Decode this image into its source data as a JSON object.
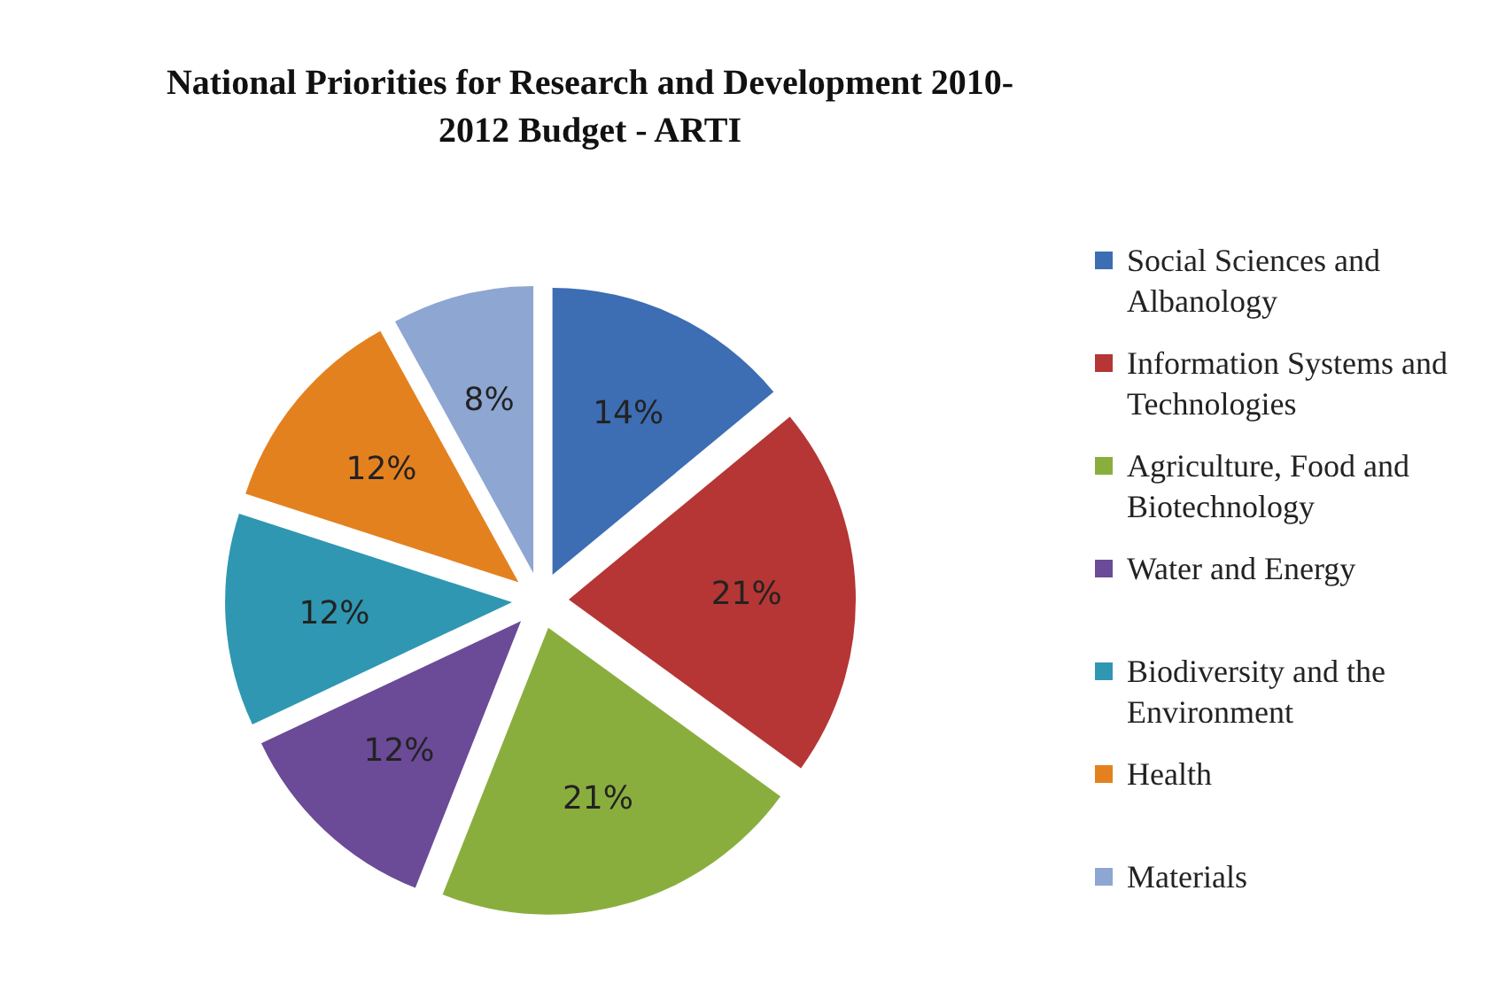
{
  "chart_data": {
    "type": "pie",
    "title": "National Priorities for Research and Development 2010-2012 Budget - ARTI",
    "categories": [
      "Social Sciences and Albanology",
      "Information Systems and Technologies",
      "Agriculture, Food and Biotechnology",
      "Water and Energy",
      "Biodiversity and the Environment",
      "Health",
      "Materials"
    ],
    "values": [
      14,
      21,
      21,
      12,
      12,
      12,
      8
    ],
    "value_labels": [
      "14%",
      "21%",
      "21%",
      "12%",
      "12%",
      "12%",
      "8%"
    ],
    "colors": [
      "#3d6db3",
      "#b53634",
      "#8aae3e",
      "#6b4a97",
      "#2f97b1",
      "#e4811f",
      "#8ea6d2"
    ],
    "legend": "right"
  }
}
